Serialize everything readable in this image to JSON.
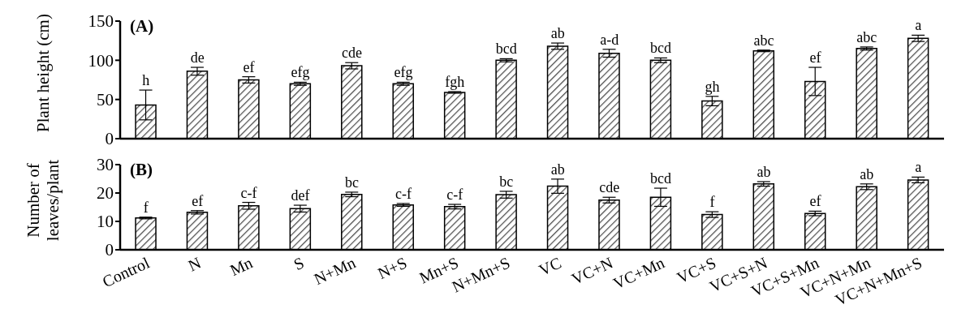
{
  "chart_data": [
    {
      "type": "bar",
      "ylabel": "Plant height (cm)",
      "tick_labels": "y",
      "color": "#000000",
      "ylim": [
        0,
        150
      ],
      "yticks": [
        0,
        50,
        100,
        150
      ],
      "categories": [
        "Control",
        "N",
        "Mn",
        "S",
        "N+Mn",
        "N+S",
        "Mn+S",
        "N+Mn+S",
        "VC",
        "VC+N",
        "VC+Mn",
        "VC+S",
        "VC+S+N",
        "VC+S+Mn",
        "VC+N+Mn",
        "VC+N+Mn+S"
      ],
      "values": [
        43,
        86,
        75,
        70,
        93,
        70,
        59,
        100,
        118,
        109,
        100,
        48,
        112,
        73,
        115,
        128
      ],
      "errors": [
        19,
        5,
        4,
        2,
        4,
        2,
        1,
        2,
        4,
        5,
        3,
        6,
        1,
        18,
        2,
        4
      ],
      "annotations": [
        "(A)",
        {
          "text": "h",
          "x": "Control",
          "y": 62
        },
        {
          "text": "de",
          "x": "N",
          "y": 91
        },
        {
          "text": "ef",
          "x": "Mn",
          "y": 79
        },
        {
          "text": "efg",
          "x": "S",
          "y": 72
        },
        {
          "text": "cde",
          "x": "N+Mn",
          "y": 97
        },
        {
          "text": "efg",
          "x": "N+S",
          "y": 72
        },
        {
          "text": "fgh",
          "x": "Mn+S",
          "y": 60
        },
        {
          "text": "bcd",
          "x": "N+Mn+S",
          "y": 102
        },
        {
          "text": "ab",
          "x": "VC",
          "y": 122
        },
        {
          "text": "a-d",
          "x": "VC+N",
          "y": 114
        },
        {
          "text": "bcd",
          "x": "VC+Mn",
          "y": 103
        },
        {
          "text": "gh",
          "x": "VC+S",
          "y": 54
        },
        {
          "text": "abc",
          "x": "VC+S+N",
          "y": 113
        },
        {
          "text": "ef",
          "x": "VC+S+Mn",
          "y": 91
        },
        {
          "text": "abc",
          "x": "VC+N+Mn",
          "y": 117
        },
        {
          "text": "a",
          "x": "VC+N+Mn+S",
          "y": 132
        }
      ]
    },
    {
      "type": "bar",
      "ylabel": "Number of leaves/plant",
      "color": "#000000",
      "ylim": [
        0,
        30
      ],
      "yticks": [
        0,
        10,
        20,
        30
      ],
      "categories": [
        "Control",
        "N",
        "Mn",
        "S",
        "N+Mn",
        "N+S",
        "Mn+S",
        "N+Mn+S",
        "VC",
        "VC+N",
        "VC+Mn",
        "VC+S",
        "VC+S+N",
        "VC+S+Mn",
        "VC+N+Mn",
        "VC+N+Mn+S"
      ],
      "values": [
        11.2,
        13.2,
        15.5,
        14.5,
        19.5,
        15.8,
        15.2,
        19.4,
        22.4,
        17.5,
        18.5,
        12.4,
        23.2,
        12.8,
        22.2,
        24.6
      ],
      "errors": [
        0.3,
        0.6,
        1.2,
        1.2,
        0.8,
        0.5,
        0.8,
        1.2,
        2.5,
        1,
        3.2,
        1,
        0.8,
        0.8,
        1,
        1
      ],
      "annotations": [
        "(B)",
        {
          "text": "f",
          "x": "Control",
          "y": 11.5
        },
        {
          "text": "ef",
          "x": "N",
          "y": 13.8
        },
        {
          "text": "c-f",
          "x": "Mn",
          "y": 16.7
        },
        {
          "text": "def",
          "x": "S",
          "y": 15.7
        },
        {
          "text": "bc",
          "x": "N+Mn",
          "y": 20.3
        },
        {
          "text": "c-f",
          "x": "N+S",
          "y": 16.3
        },
        {
          "text": "c-f",
          "x": "Mn+S",
          "y": 16
        },
        {
          "text": "bc",
          "x": "N+Mn+S",
          "y": 20.6
        },
        {
          "text": "ab",
          "x": "VC",
          "y": 24.9
        },
        {
          "text": "cde",
          "x": "VC+N",
          "y": 18.5
        },
        {
          "text": "bcd",
          "x": "VC+Mn",
          "y": 21.7
        },
        {
          "text": "f",
          "x": "VC+S",
          "y": 13.4
        },
        {
          "text": "ab",
          "x": "VC+S+N",
          "y": 24
        },
        {
          "text": "ef",
          "x": "VC+S+Mn",
          "y": 13.6
        },
        {
          "text": "ab",
          "x": "VC+N+Mn",
          "y": 23.2
        },
        {
          "text": "a",
          "x": "VC+N+Mn+S",
          "y": 25.6
        }
      ]
    }
  ]
}
